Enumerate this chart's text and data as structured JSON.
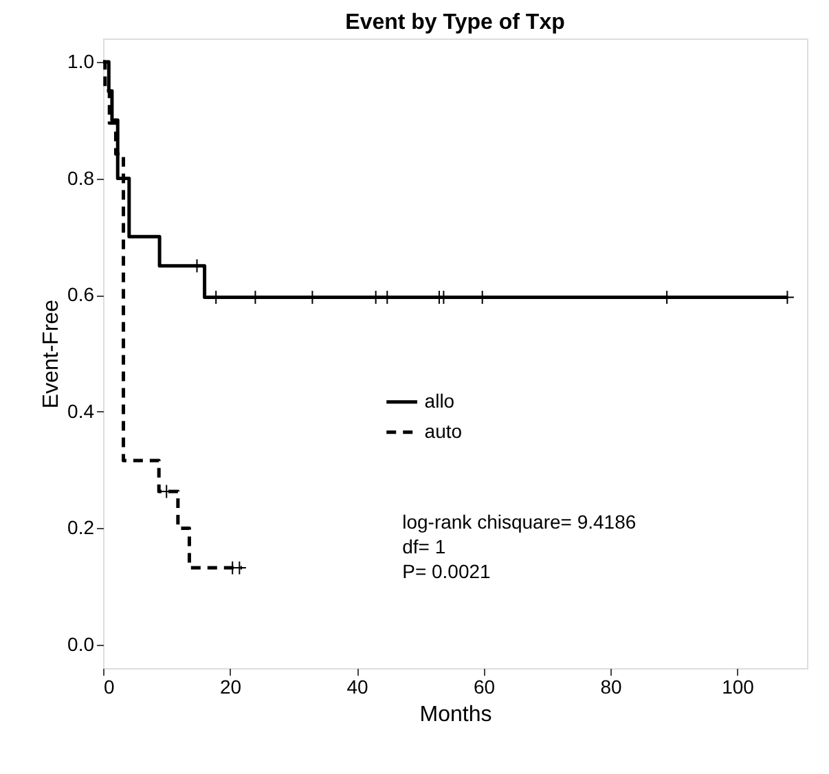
{
  "chart_data": {
    "type": "step",
    "title": "Event by Type of Txp",
    "xlabel": "Months",
    "ylabel": "Event-Free",
    "xlim": [
      0,
      111
    ],
    "ylim": [
      -0.04,
      1.04
    ],
    "xticks": [
      0,
      20,
      40,
      60,
      80,
      100
    ],
    "yticks": [
      {
        "value": 0,
        "label": "0.0"
      },
      {
        "value": 0.2,
        "label": "0.2"
      },
      {
        "value": 0.4,
        "label": "0.4"
      },
      {
        "value": 0.6,
        "label": "0.6"
      },
      {
        "value": 0.8,
        "label": "0.8"
      },
      {
        "value": 1,
        "label": "1.0"
      }
    ],
    "grid": false,
    "legend": "center",
    "series": [
      {
        "name": "allo",
        "color": "#000000",
        "line_style": "solid",
        "x": [
          0,
          0.9,
          1.4,
          2.3,
          4.1,
          8.9,
          16,
          108
        ],
        "values": [
          1.0,
          0.95,
          0.9,
          0.8,
          0.7,
          0.65,
          0.596,
          0.596
        ]
      },
      {
        "name": "auto",
        "color": "#000000",
        "line_style": "dashed",
        "x": [
          0,
          0.3,
          1.0,
          2.0,
          3.2,
          8.8,
          11.8,
          13.6,
          21.9
        ],
        "values": [
          1.0,
          0.95,
          0.895,
          0.842,
          0.316,
          0.263,
          0.2,
          0.132,
          0.132
        ]
      },
      {
        "type": "scatter",
        "color": "#000000",
        "marker": "cross",
        "x": [
          14.8,
          17.8,
          24,
          33,
          43,
          44.8,
          53,
          53.7,
          59.8,
          88.9,
          107.9
        ],
        "values": [
          0.65,
          0.596,
          0.596,
          0.596,
          0.596,
          0.596,
          0.596,
          0.596,
          0.596,
          0.596,
          0.596
        ]
      },
      {
        "type": "scatter",
        "color": "#000000",
        "marker": "cross",
        "x": [
          10,
          20.4,
          21.5
        ],
        "values": [
          0.263,
          0.132,
          0.132
        ]
      }
    ],
    "annotations": [
      "log-rank chisquare= 9.4186",
      "df= 1",
      "P= 0.0021"
    ]
  }
}
